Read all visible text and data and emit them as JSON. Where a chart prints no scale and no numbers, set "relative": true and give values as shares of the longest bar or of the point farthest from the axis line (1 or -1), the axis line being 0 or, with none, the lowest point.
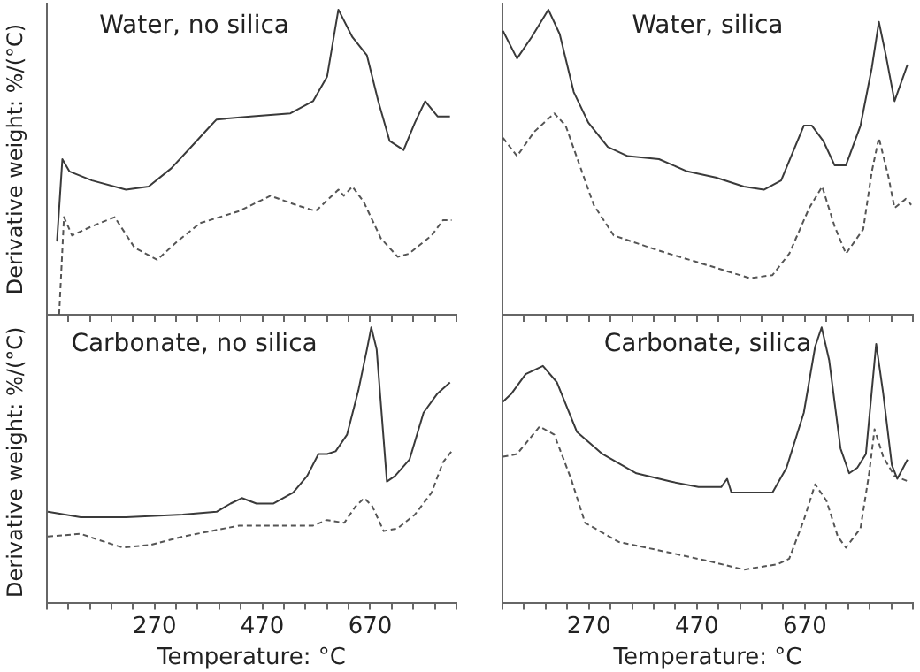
{
  "chart_data": [
    {
      "type": "line",
      "title": "Water, no silica",
      "ylabel": "Derivative weight: %/(°C)",
      "relative": true,
      "tick_labels": false,
      "xlim": [
        70,
        830
      ],
      "xticks": [
        {
          "value": 70,
          "label": null
        },
        {
          "value": 110,
          "label": null
        },
        {
          "value": 150,
          "label": null
        },
        {
          "value": 190,
          "label": null
        },
        {
          "value": 230,
          "label": null
        },
        {
          "value": 270,
          "label": null
        },
        {
          "value": 310,
          "label": null
        },
        {
          "value": 350,
          "label": null
        },
        {
          "value": 390,
          "label": null
        },
        {
          "value": 430,
          "label": null
        },
        {
          "value": 470,
          "label": null
        },
        {
          "value": 510,
          "label": null
        },
        {
          "value": 550,
          "label": null
        },
        {
          "value": 590,
          "label": null
        },
        {
          "value": 630,
          "label": null
        },
        {
          "value": 670,
          "label": null
        },
        {
          "value": 710,
          "label": null
        },
        {
          "value": 750,
          "label": null
        },
        {
          "value": 790,
          "label": null
        },
        {
          "value": 830,
          "label": null
        }
      ],
      "series": [
        {
          "color": "#3a3a3a",
          "line_style": "solid",
          "x": [
            89,
            99,
            112,
            154,
            217,
            259,
            301,
            343,
            369,
            385,
            448,
            522,
            564,
            590,
            611,
            637,
            664,
            685,
            706,
            732,
            753,
            772,
            795,
            818
          ],
          "values": [
            0.24,
            0.51,
            0.47,
            0.44,
            0.41,
            0.42,
            0.48,
            0.56,
            0.61,
            0.64,
            0.65,
            0.66,
            0.7,
            0.78,
            1.0,
            0.91,
            0.85,
            0.7,
            0.57,
            0.54,
            0.63,
            0.7,
            0.65,
            0.65
          ]
        },
        {
          "color": "#555555",
          "line_style": "dashed",
          "x": [
            93,
            102,
            117,
            154,
            196,
            233,
            275,
            312,
            354,
            427,
            485,
            532,
            569,
            611,
            621,
            637,
            658,
            690,
            721,
            742,
            784,
            805,
            821
          ],
          "values": [
            0.0,
            0.32,
            0.26,
            0.29,
            0.32,
            0.22,
            0.18,
            0.24,
            0.3,
            0.34,
            0.39,
            0.36,
            0.34,
            0.41,
            0.39,
            0.42,
            0.37,
            0.25,
            0.19,
            0.2,
            0.26,
            0.31,
            0.31
          ]
        }
      ]
    },
    {
      "type": "line",
      "title": "Water, silica",
      "relative": true,
      "tick_labels": false,
      "xlim": [
        110,
        870
      ],
      "xticks": [
        {
          "value": 110,
          "label": null
        },
        {
          "value": 150,
          "label": null
        },
        {
          "value": 190,
          "label": null
        },
        {
          "value": 230,
          "label": null
        },
        {
          "value": 270,
          "label": null
        },
        {
          "value": 310,
          "label": null
        },
        {
          "value": 350,
          "label": null
        },
        {
          "value": 390,
          "label": null
        },
        {
          "value": 430,
          "label": null
        },
        {
          "value": 470,
          "label": null
        },
        {
          "value": 510,
          "label": null
        },
        {
          "value": 550,
          "label": null
        },
        {
          "value": 590,
          "label": null
        },
        {
          "value": 630,
          "label": null
        },
        {
          "value": 670,
          "label": null
        },
        {
          "value": 710,
          "label": null
        },
        {
          "value": 750,
          "label": null
        },
        {
          "value": 790,
          "label": null
        },
        {
          "value": 830,
          "label": null
        },
        {
          "value": 870,
          "label": null
        }
      ],
      "series": [
        {
          "color": "#3a3a3a",
          "line_style": "solid",
          "x": [
            111,
            137,
            164,
            195,
            216,
            242,
            269,
            305,
            342,
            400,
            452,
            505,
            557,
            594,
            626,
            647,
            668,
            683,
            704,
            725,
            746,
            773,
            794,
            807,
            820,
            836,
            860
          ],
          "values": [
            0.93,
            0.84,
            0.91,
            1.0,
            0.92,
            0.73,
            0.63,
            0.55,
            0.52,
            0.51,
            0.47,
            0.45,
            0.42,
            0.41,
            0.44,
            0.53,
            0.62,
            0.62,
            0.57,
            0.49,
            0.49,
            0.62,
            0.81,
            0.96,
            0.85,
            0.7,
            0.82
          ]
        },
        {
          "color": "#555555",
          "line_style": "dashed",
          "x": [
            111,
            137,
            169,
            206,
            227,
            253,
            279,
            316,
            400,
            494,
            568,
            610,
            641,
            678,
            702,
            725,
            746,
            778,
            794,
            807,
            825,
            836,
            857,
            867
          ],
          "values": [
            0.58,
            0.52,
            0.6,
            0.66,
            0.62,
            0.49,
            0.36,
            0.26,
            0.21,
            0.16,
            0.12,
            0.13,
            0.2,
            0.35,
            0.42,
            0.29,
            0.2,
            0.28,
            0.47,
            0.58,
            0.45,
            0.35,
            0.38,
            0.36
          ]
        }
      ]
    },
    {
      "type": "line",
      "title": "Carbonate, no silica",
      "xlabel": "Temperature: °C",
      "ylabel": "Derivative weight: %/(°C)",
      "relative": true,
      "tick_labels": "x",
      "xlim": [
        70,
        830
      ],
      "xticks": [
        {
          "value": 70,
          "label": null
        },
        {
          "value": 110,
          "label": null
        },
        {
          "value": 150,
          "label": null
        },
        {
          "value": 190,
          "label": null
        },
        {
          "value": 230,
          "label": null
        },
        270,
        {
          "value": 310,
          "label": null
        },
        {
          "value": 350,
          "label": null
        },
        {
          "value": 390,
          "label": null
        },
        {
          "value": 430,
          "label": null
        },
        470,
        {
          "value": 510,
          "label": null
        },
        {
          "value": 550,
          "label": null
        },
        {
          "value": 590,
          "label": null
        },
        {
          "value": 630,
          "label": null
        },
        670,
        {
          "value": 710,
          "label": null
        },
        {
          "value": 750,
          "label": null
        },
        {
          "value": 790,
          "label": null
        },
        {
          "value": 830,
          "label": null
        }
      ],
      "series": [
        {
          "color": "#3a3a3a",
          "line_style": "solid",
          "x": [
            72,
            133,
            217,
            322,
            385,
            411,
            432,
            459,
            490,
            527,
            553,
            574,
            590,
            606,
            627,
            648,
            664,
            672,
            682,
            701,
            716,
            743,
            769,
            795,
            818
          ],
          "values": [
            0.33,
            0.31,
            0.31,
            0.32,
            0.33,
            0.36,
            0.38,
            0.36,
            0.36,
            0.4,
            0.46,
            0.54,
            0.54,
            0.55,
            0.61,
            0.77,
            0.92,
            1.0,
            0.92,
            0.44,
            0.46,
            0.52,
            0.69,
            0.76,
            0.8
          ]
        },
        {
          "color": "#555555",
          "line_style": "dashed",
          "x": [
            72,
            133,
            163,
            211,
            263,
            322,
            427,
            511,
            564,
            590,
            622,
            643,
            659,
            674,
            695,
            721,
            753,
            784,
            805,
            821
          ],
          "values": [
            0.24,
            0.25,
            0.23,
            0.2,
            0.21,
            0.24,
            0.28,
            0.28,
            0.28,
            0.3,
            0.29,
            0.35,
            0.38,
            0.35,
            0.26,
            0.27,
            0.32,
            0.4,
            0.51,
            0.55
          ]
        }
      ]
    },
    {
      "type": "line",
      "title": "Carbonate, silica",
      "xlabel": "Temperature: °C",
      "relative": true,
      "tick_labels": "x",
      "xlim": [
        110,
        870
      ],
      "xticks": [
        {
          "value": 110,
          "label": null
        },
        {
          "value": 150,
          "label": null
        },
        {
          "value": 190,
          "label": null
        },
        {
          "value": 230,
          "label": null
        },
        270,
        {
          "value": 310,
          "label": null
        },
        {
          "value": 350,
          "label": null
        },
        {
          "value": 390,
          "label": null
        },
        {
          "value": 430,
          "label": null
        },
        470,
        {
          "value": 510,
          "label": null
        },
        {
          "value": 550,
          "label": null
        },
        {
          "value": 590,
          "label": null
        },
        {
          "value": 630,
          "label": null
        },
        670,
        {
          "value": 710,
          "label": null
        },
        {
          "value": 750,
          "label": null
        },
        {
          "value": 790,
          "label": null
        },
        {
          "value": 830,
          "label": null
        },
        {
          "value": 870,
          "label": null
        }
      ],
      "series": [
        {
          "color": "#3a3a3a",
          "line_style": "solid",
          "x": [
            111,
            127,
            153,
            185,
            211,
            248,
            295,
            358,
            421,
            473,
            515,
            526,
            534,
            578,
            610,
            636,
            668,
            689,
            701,
            715,
            736,
            752,
            767,
            783,
            802,
            815,
            831,
            841,
            860
          ],
          "values": [
            0.73,
            0.76,
            0.83,
            0.86,
            0.8,
            0.62,
            0.54,
            0.47,
            0.44,
            0.42,
            0.42,
            0.45,
            0.4,
            0.4,
            0.4,
            0.49,
            0.69,
            0.93,
            1.0,
            0.88,
            0.56,
            0.47,
            0.49,
            0.54,
            0.94,
            0.76,
            0.5,
            0.45,
            0.52
          ]
        },
        {
          "color": "#555555",
          "line_style": "dashed",
          "x": [
            111,
            137,
            179,
            206,
            237,
            263,
            326,
            400,
            494,
            557,
            620,
            641,
            668,
            689,
            710,
            731,
            746,
            773,
            789,
            799,
            815,
            836,
            862
          ],
          "values": [
            0.53,
            0.54,
            0.64,
            0.61,
            0.45,
            0.29,
            0.22,
            0.19,
            0.15,
            0.12,
            0.14,
            0.16,
            0.3,
            0.43,
            0.37,
            0.24,
            0.2,
            0.27,
            0.47,
            0.63,
            0.53,
            0.46,
            0.44
          ]
        }
      ]
    }
  ]
}
